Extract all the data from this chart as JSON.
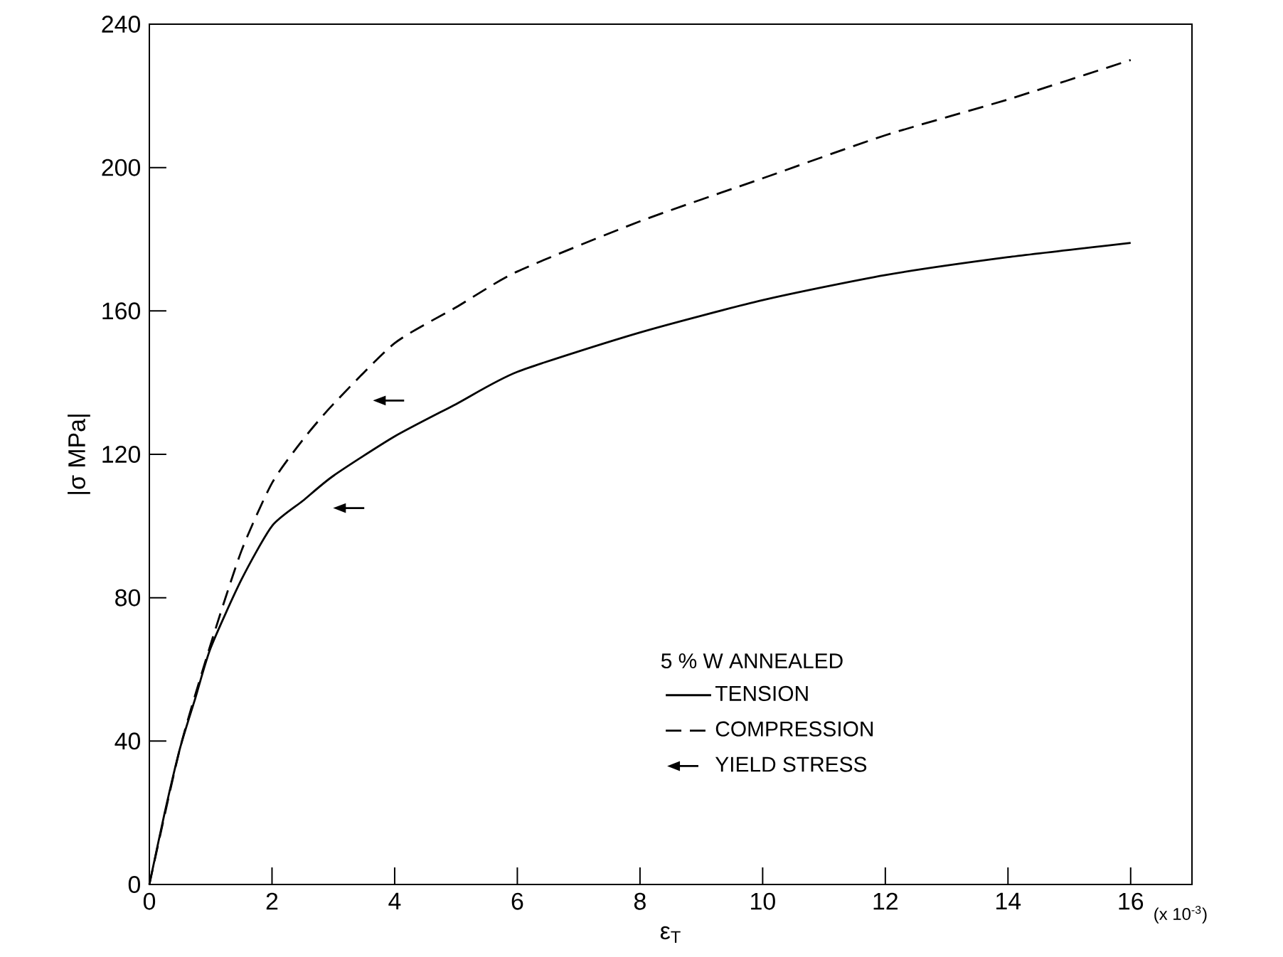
{
  "chart_data": {
    "type": "line",
    "xlabel": "ε$_{T}$",
    "ylabel": "|σ MPa|",
    "legend_title": "5 % W ANNEALED",
    "x": [
      0,
      0.25,
      0.5,
      0.75,
      1,
      1.5,
      2,
      2.5,
      3,
      4,
      5,
      6,
      8,
      10,
      12,
      14,
      16
    ],
    "series": [
      {
        "name": "TENSION",
        "color": "#000000",
        "line_style": "solid",
        "values": [
          0,
          20,
          38,
          52,
          66,
          85,
          100,
          107,
          114,
          125,
          134,
          143,
          154,
          163,
          170,
          175,
          179
        ]
      },
      {
        "name": "COMPRESSION",
        "color": "#000000",
        "line_style": "dashed",
        "x": [
          0,
          0.5,
          1,
          1.5,
          2,
          2.5,
          3,
          4,
          5,
          6,
          8,
          10,
          12,
          14,
          16
        ],
        "values": [
          0,
          38,
          67,
          93,
          112,
          124,
          134,
          151,
          161,
          171,
          185,
          197,
          209,
          219,
          230
        ]
      },
      {
        "name": "YIELD STRESS",
        "type": "scatter",
        "color": "#000000",
        "x": [
          3.9,
          3.25
        ],
        "values": [
          135,
          105
        ]
      }
    ],
    "xlim": [
      0,
      17
    ],
    "ylim": [
      0,
      240
    ],
    "xticks": [
      0,
      2,
      4,
      6,
      8,
      10,
      12,
      14,
      16
    ],
    "yticks": [
      0,
      40,
      80,
      120,
      160,
      200,
      240
    ],
    "annotations": [
      "(x 10$^{-3}$)"
    ],
    "legend": "bottom right"
  }
}
